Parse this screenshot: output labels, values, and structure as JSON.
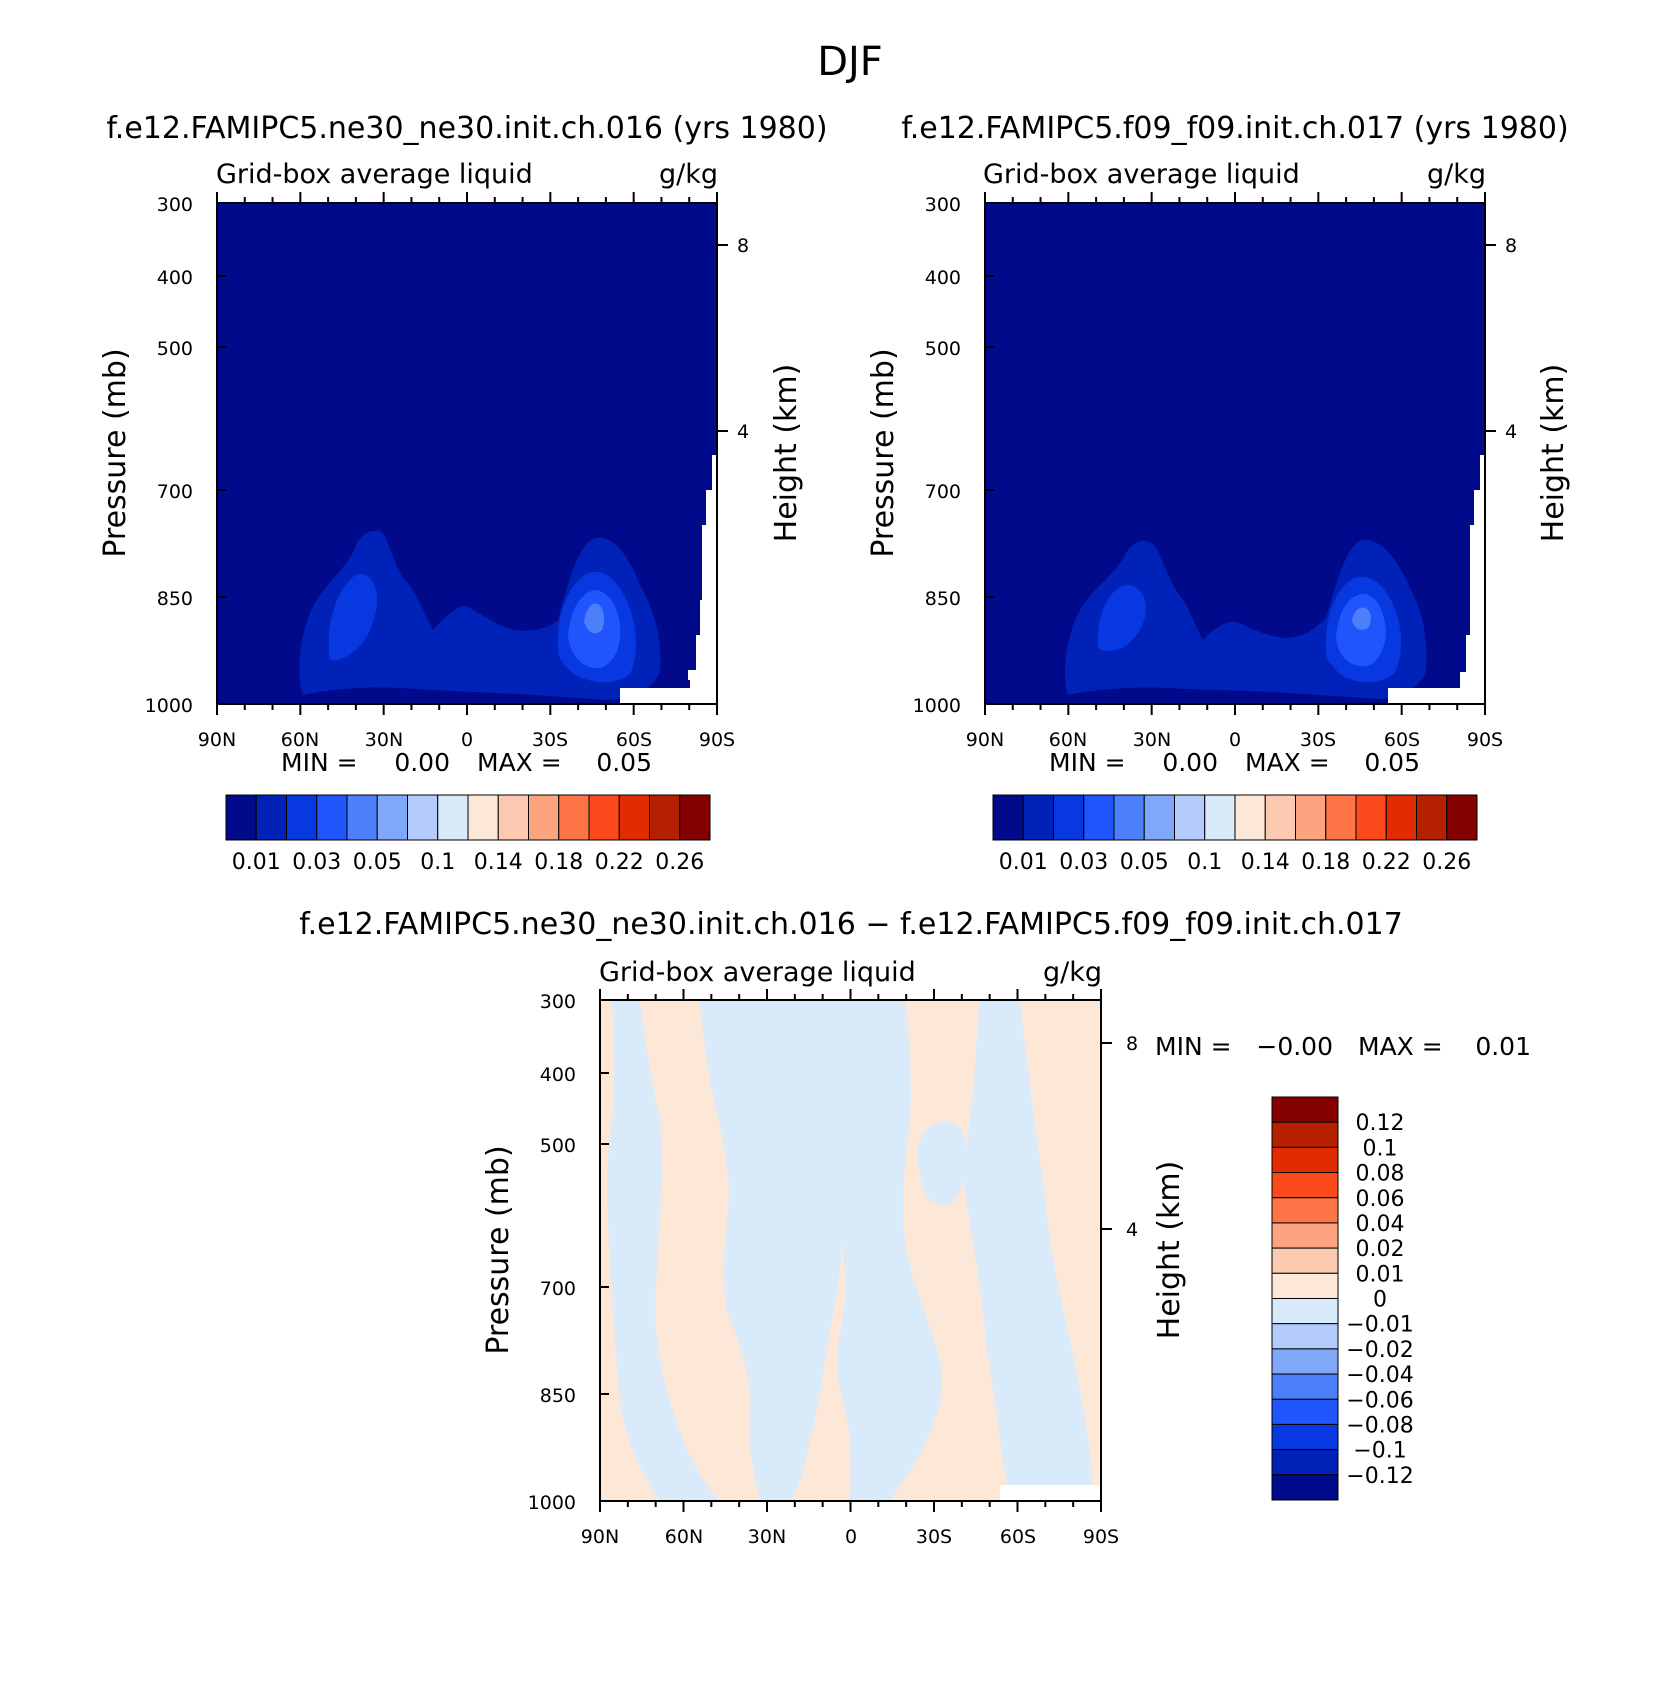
{
  "figure": {
    "title": "DJF"
  },
  "chart_data": [
    {
      "type": "heatmap",
      "title": "f.e12.FAMIPC5.ne30_ne30.init.ch.016 (yrs 1980)",
      "subtitle_left": "Grid-box average liquid",
      "subtitle_right": "g/kg",
      "xlabel": "",
      "ylabel": "Pressure (mb)",
      "ylabel_right": "Height (km)",
      "x_ticks": [
        "90N",
        "60N",
        "30N",
        "0",
        "30S",
        "60S",
        "90S"
      ],
      "y_ticks": [
        "300",
        "400",
        "500",
        "700",
        "850",
        "1000"
      ],
      "y_right_ticks": [
        "8",
        "4"
      ],
      "ylim": [
        1000,
        300
      ],
      "stats": {
        "min_label": "MIN =",
        "min": "0.00",
        "max_label": "MAX =",
        "max": "0.05"
      },
      "colorbar_labels": [
        "0.01",
        "0.03",
        "0.05",
        "0.1",
        "0.14",
        "0.18",
        "0.22",
        "0.26"
      ],
      "colors": [
        "#000a8a",
        "#0022b8",
        "#0838e0",
        "#1f55fa",
        "#4c7ffa",
        "#80a8fa",
        "#b3ccfb",
        "#d9eafb",
        "#fde8d8",
        "#fdc9b0",
        "#fca37f",
        "#fd7447",
        "#fd4a1c",
        "#e02c00",
        "#b52000",
        "#850000"
      ]
    },
    {
      "type": "heatmap",
      "title": "f.e12.FAMIPC5.f09_f09.init.ch.017 (yrs 1980)",
      "subtitle_left": "Grid-box average liquid",
      "subtitle_right": "g/kg",
      "xlabel": "",
      "ylabel": "Pressure (mb)",
      "ylabel_right": "Height (km)",
      "x_ticks": [
        "90N",
        "60N",
        "30N",
        "0",
        "30S",
        "60S",
        "90S"
      ],
      "y_ticks": [
        "300",
        "400",
        "500",
        "700",
        "850",
        "1000"
      ],
      "y_right_ticks": [
        "8",
        "4"
      ],
      "ylim": [
        1000,
        300
      ],
      "stats": {
        "min_label": "MIN =",
        "min": "0.00",
        "max_label": "MAX =",
        "max": "0.05"
      },
      "colorbar_labels": [
        "0.01",
        "0.03",
        "0.05",
        "0.1",
        "0.14",
        "0.18",
        "0.22",
        "0.26"
      ],
      "colors": [
        "#000a8a",
        "#0022b8",
        "#0838e0",
        "#1f55fa",
        "#4c7ffa",
        "#80a8fa",
        "#b3ccfb",
        "#d9eafb",
        "#fde8d8",
        "#fdc9b0",
        "#fca37f",
        "#fd7447",
        "#fd4a1c",
        "#e02c00",
        "#b52000",
        "#850000"
      ]
    },
    {
      "type": "heatmap",
      "title": "f.e12.FAMIPC5.ne30_ne30.init.ch.016 − f.e12.FAMIPC5.f09_f09.init.ch.017",
      "subtitle_left": "Grid-box average liquid",
      "subtitle_right": "g/kg",
      "xlabel": "",
      "ylabel": "Pressure (mb)",
      "ylabel_right": "Height (km)",
      "x_ticks": [
        "90N",
        "60N",
        "30N",
        "0",
        "30S",
        "60S",
        "90S"
      ],
      "y_ticks": [
        "300",
        "400",
        "500",
        "700",
        "850",
        "1000"
      ],
      "y_right_ticks": [
        "8",
        "4"
      ],
      "ylim": [
        1000,
        300
      ],
      "stats": {
        "min_label": "MIN =",
        "min": "−0.00",
        "max_label": "MAX =",
        "max": "0.01"
      },
      "colorbar_labels": [
        "0.12",
        "0.1",
        "0.08",
        "0.06",
        "0.04",
        "0.02",
        "0.01",
        "0",
        "−0.01",
        "−0.02",
        "−0.04",
        "−0.06",
        "−0.08",
        "−0.1",
        "−0.12"
      ],
      "colors": [
        "#850000",
        "#b52000",
        "#e02c00",
        "#fd4a1c",
        "#fd7447",
        "#fca37f",
        "#fdc9b0",
        "#fde8d8",
        "#d9eafb",
        "#b3ccfb",
        "#80a8fa",
        "#4c7ffa",
        "#1f55fa",
        "#0838e0",
        "#0022b8",
        "#000a8a"
      ]
    }
  ]
}
